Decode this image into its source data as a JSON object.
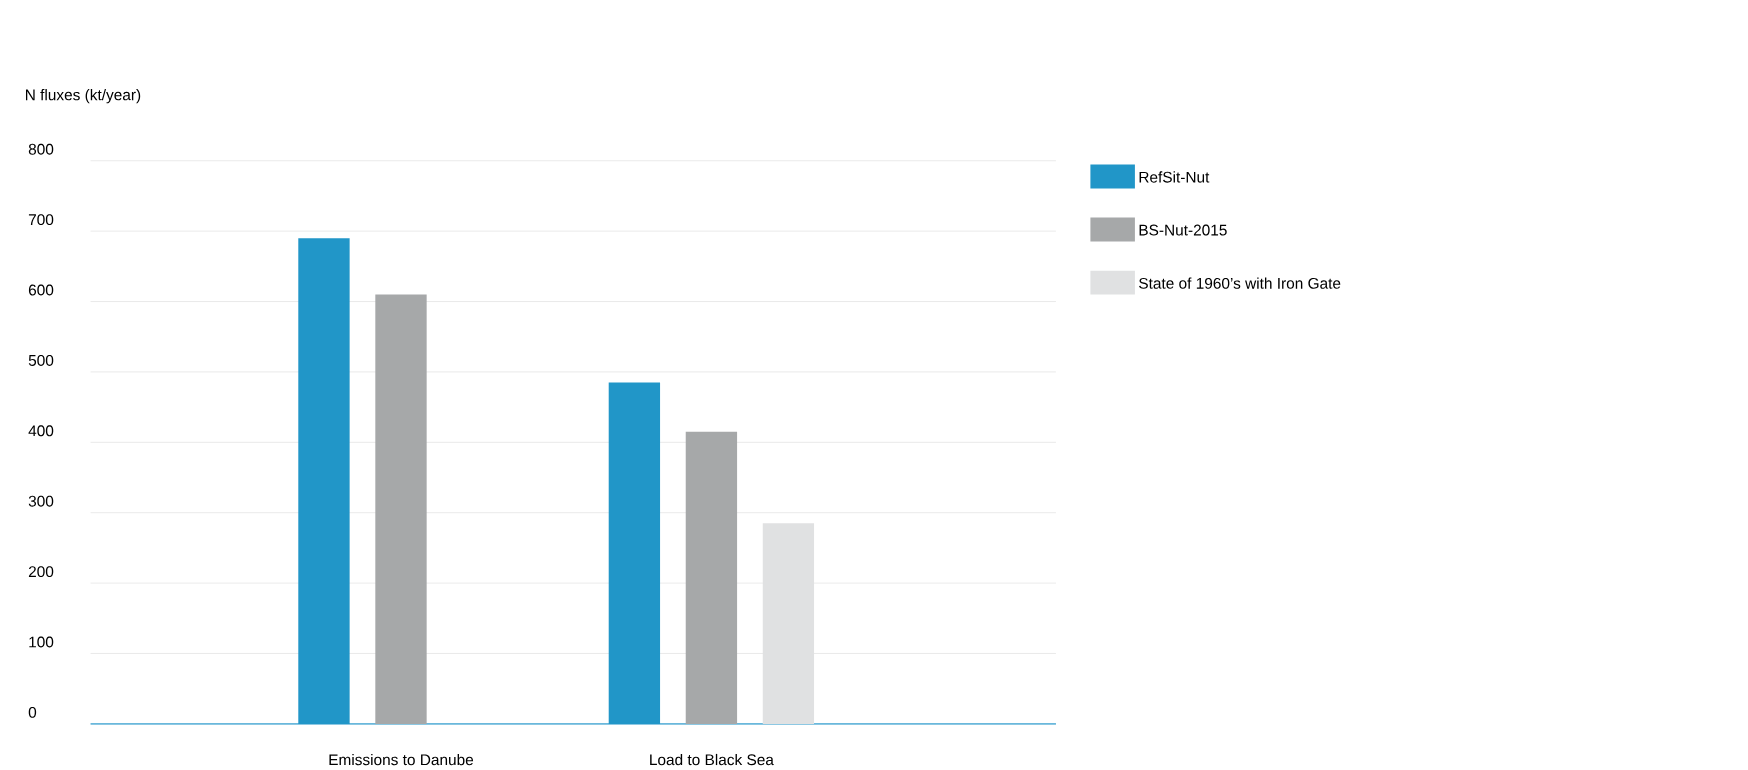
{
  "chart_data": {
    "type": "bar",
    "ylabel": "N fluxes (kt/year)",
    "categories": [
      "Emissions to Danube",
      "Load to Black Sea"
    ],
    "series": [
      {
        "name": "RefSit-Nut",
        "color": "#2196c8",
        "values": [
          690,
          485
        ]
      },
      {
        "name": "BS-Nut-2015",
        "color": "#a6a8a9",
        "values": [
          610,
          415
        ]
      },
      {
        "name": "State of 1960’s with Iron Gate",
        "color": "#e0e1e2",
        "values": [
          null,
          285
        ]
      }
    ],
    "ylim": [
      0,
      800
    ],
    "yticks": [
      0,
      100,
      200,
      300,
      400,
      500,
      600,
      700,
      800
    ],
    "grid": "y",
    "legend": "right"
  }
}
